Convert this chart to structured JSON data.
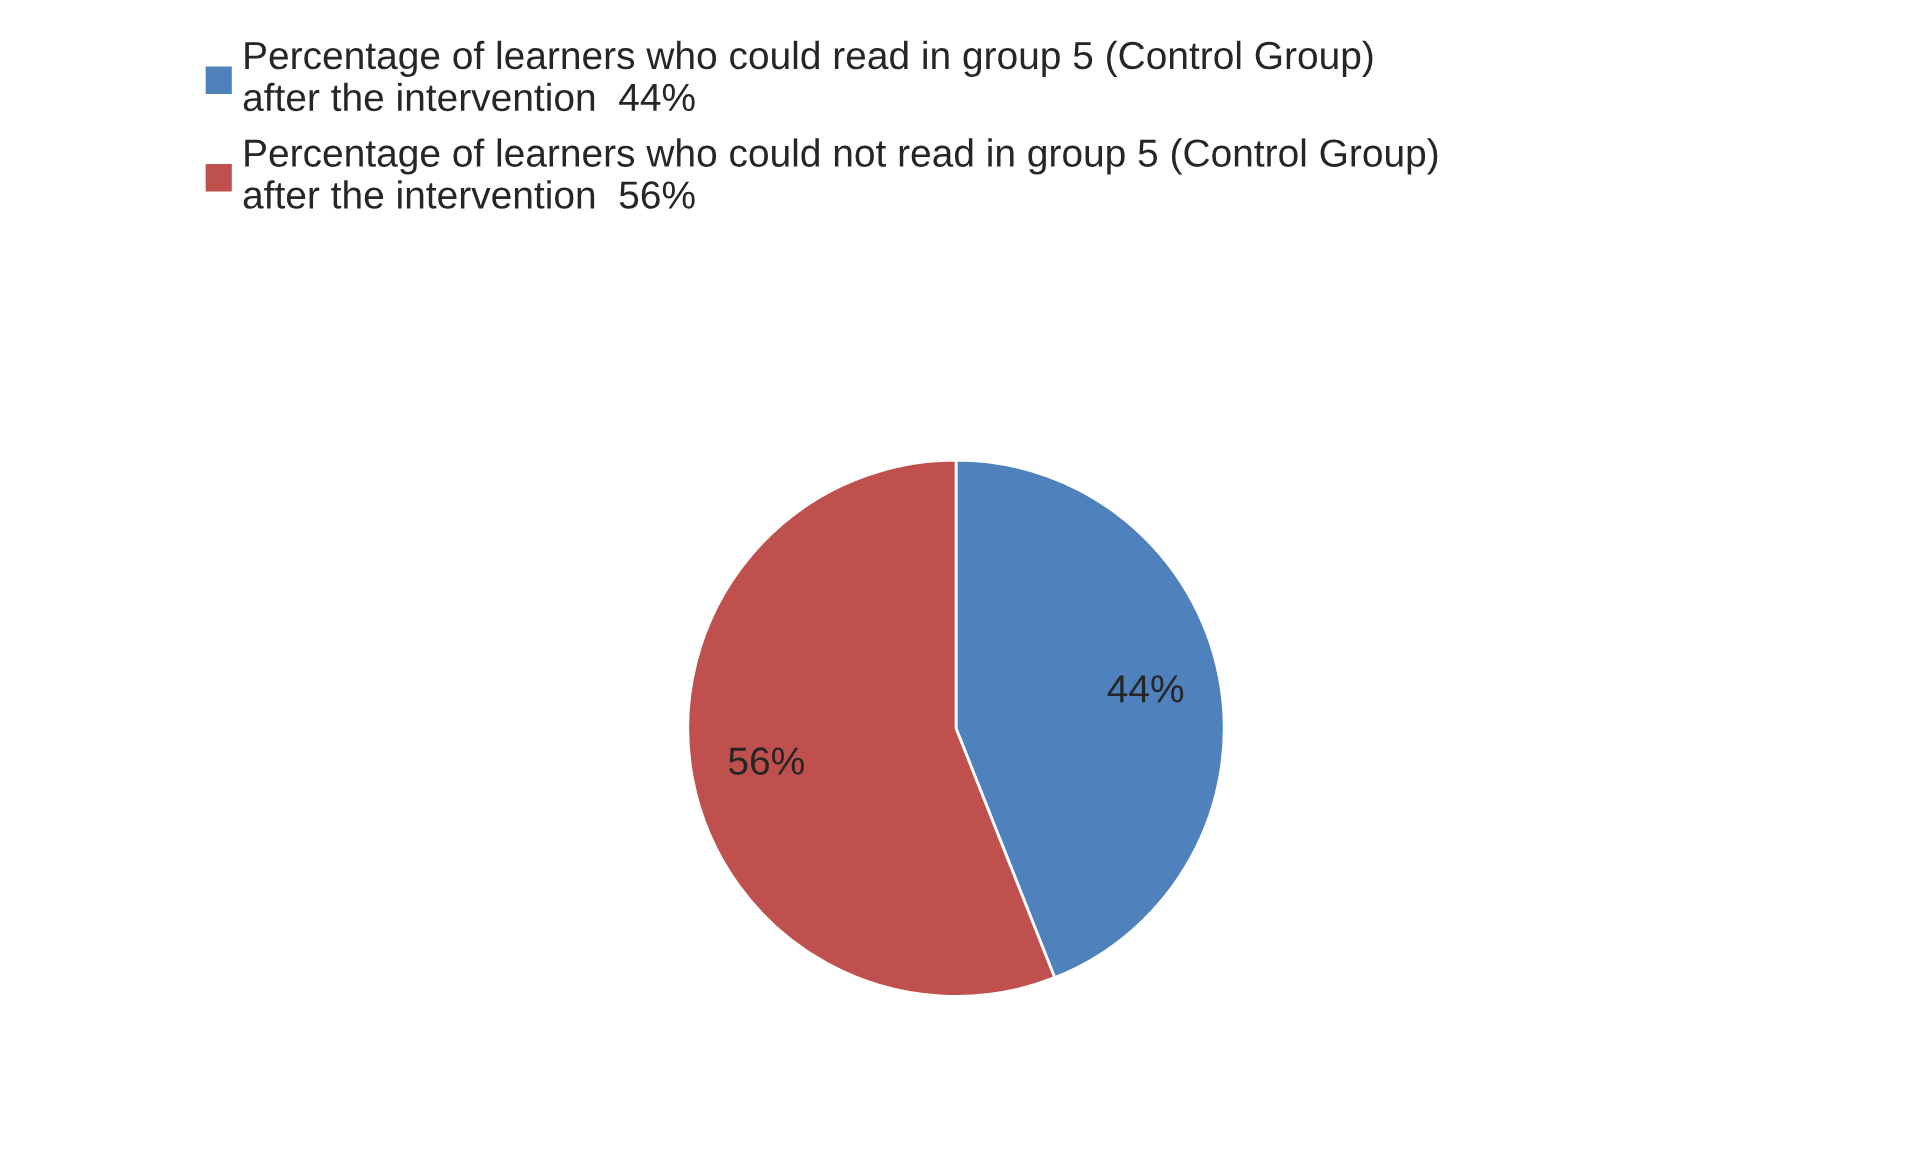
{
  "chart_data": {
    "type": "pie",
    "categories": [
      "Percentage of learners who could read in group 5 (Control Group)\nafter the intervention  44%",
      "Percentage of learners who could not read in group 5 (Control Group)\nafter the intervention  56%"
    ],
    "values": [
      44,
      56
    ],
    "colors": [
      "#4f81bd",
      "#c0504d"
    ],
    "value_labels": [
      "44%",
      "56%"
    ],
    "legend": "top"
  }
}
